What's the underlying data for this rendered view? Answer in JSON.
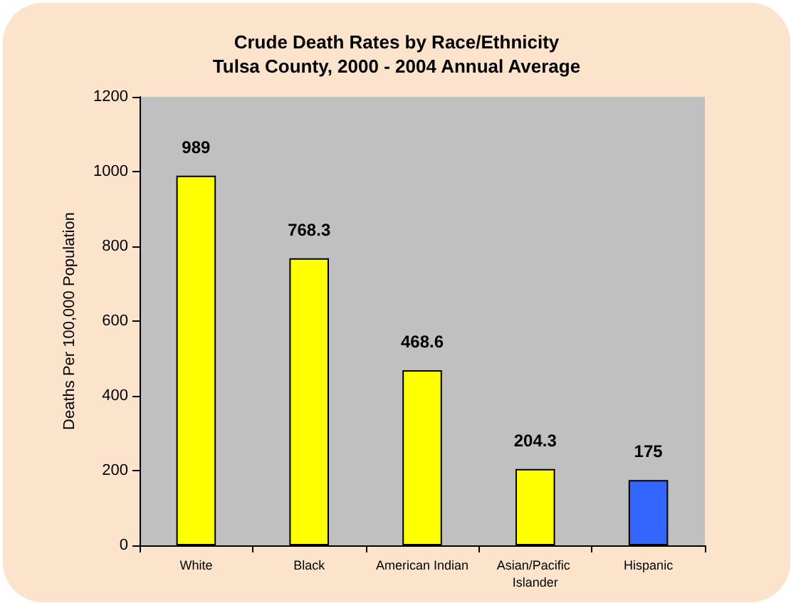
{
  "chart_data": {
    "type": "bar",
    "title": "Crude Death Rates by Race/Ethnicity\nTulsa County, 2000 - 2004 Annual Average",
    "ylabel": "Deaths Per 100,000 Population",
    "categories": [
      "White",
      "Black",
      "American Indian",
      "Asian/Pacific Islander",
      "Hispanic"
    ],
    "values": [
      989,
      768.3,
      468.6,
      204.3,
      175
    ],
    "colors": [
      "#ffff00",
      "#ffff00",
      "#ffff00",
      "#ffff00",
      "#3366ff"
    ],
    "ylim": [
      0,
      1200
    ],
    "yticks": [
      0,
      200,
      400,
      600,
      800,
      1000,
      1200
    ],
    "grid": false,
    "data_labels": true
  }
}
